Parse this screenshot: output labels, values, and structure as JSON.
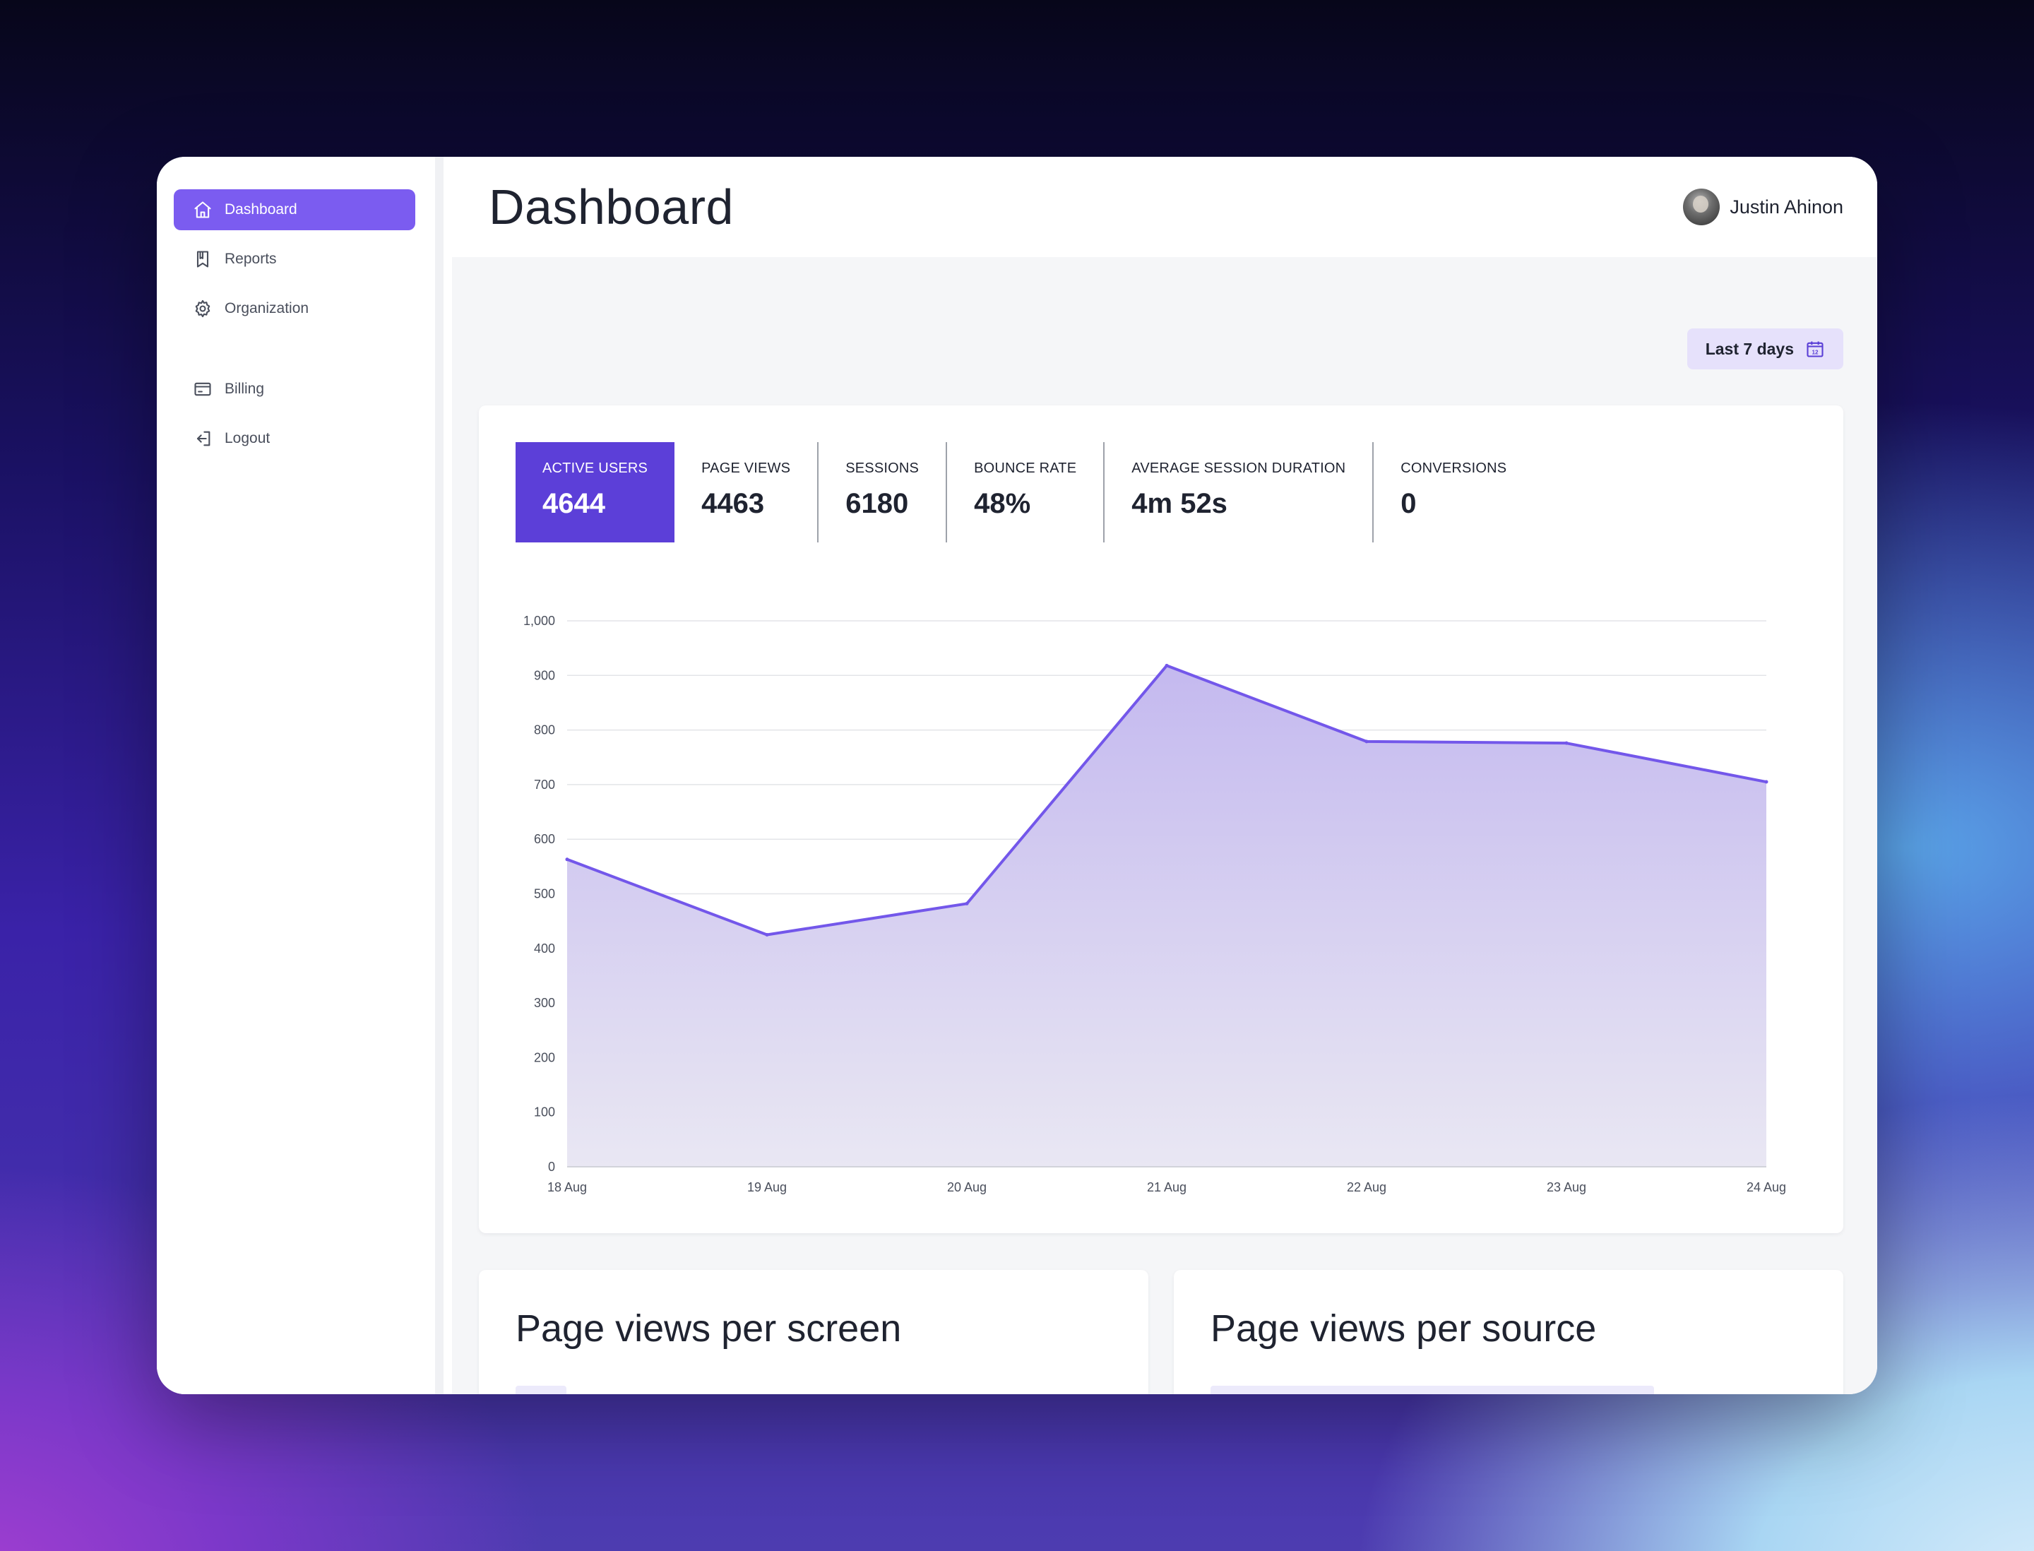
{
  "sidebar": {
    "items": [
      {
        "label": "Dashboard",
        "icon": "home-icon",
        "active": true
      },
      {
        "label": "Reports",
        "icon": "bookmark-icon",
        "active": false
      },
      {
        "label": "Organization",
        "icon": "gear-icon",
        "active": false
      },
      {
        "label": "Billing",
        "icon": "credit-card-icon",
        "active": false
      },
      {
        "label": "Logout",
        "icon": "logout-icon",
        "active": false
      }
    ]
  },
  "header": {
    "title": "Dashboard",
    "user_name": "Justin Ahinon"
  },
  "date_range": {
    "label": "Last 7 days",
    "icon": "calendar-icon",
    "icon_text": "12"
  },
  "stats": [
    {
      "label": "Active users",
      "value": "4644",
      "active": true
    },
    {
      "label": "Page views",
      "value": "4463",
      "active": false
    },
    {
      "label": "Sessions",
      "value": "6180",
      "active": false
    },
    {
      "label": "Bounce rate",
      "value": "48%",
      "active": false
    },
    {
      "label": "Average session duration",
      "value": "4m 52s",
      "active": false
    },
    {
      "label": "Conversions",
      "value": "0",
      "active": false
    }
  ],
  "chart_data": {
    "type": "area",
    "categories": [
      "18 Aug",
      "19 Aug",
      "20 Aug",
      "21 Aug",
      "22 Aug",
      "23 Aug",
      "24 Aug"
    ],
    "values": [
      563,
      425,
      482,
      918,
      779,
      776,
      705
    ],
    "yticks": [
      "0",
      "100",
      "200",
      "300",
      "400",
      "500",
      "600",
      "700",
      "800",
      "900",
      "1,000"
    ],
    "ylim": [
      0,
      1000
    ],
    "grid": true,
    "colors": {
      "line": "#7357ea",
      "fill_top": "#c4b9ef",
      "fill_bottom": "#e9e7f3"
    }
  },
  "panels": {
    "screen_title": "Page views per screen",
    "source_title": "Page views per source"
  },
  "colors": {
    "accent": "#7b5cf0",
    "stat_active": "#5c3fd8",
    "date_button_bg": "#e6e1fb"
  }
}
